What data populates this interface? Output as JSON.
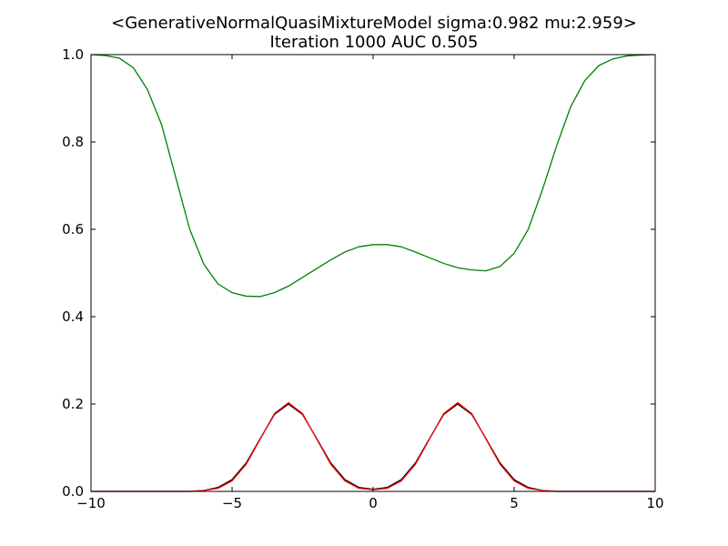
{
  "chart_data": {
    "type": "line",
    "title": "<GenerativeNormalQuasiMixtureModel  sigma:0.982 mu:2.959>",
    "subtitle": "Iteration 1000 AUC 0.505",
    "xlabel": "",
    "ylabel": "",
    "xlim": [
      -10,
      10
    ],
    "ylim": [
      0,
      1
    ],
    "x_ticks": [
      -10,
      -5,
      0,
      5,
      10
    ],
    "x_tick_labels": [
      "−10",
      "−5",
      "0",
      "5",
      "10"
    ],
    "y_ticks": [
      0,
      0.2,
      0.4,
      0.6,
      0.8,
      1.0
    ],
    "y_tick_labels": [
      "0.0",
      "0.2",
      "0.4",
      "0.6",
      "0.8",
      "1.0"
    ],
    "grid": false,
    "legend": "none",
    "series": [
      {
        "color": "#008000",
        "x": [
          -10,
          -9.5,
          -9,
          -8.5,
          -8,
          -7.5,
          -7,
          -6.5,
          -6,
          -5.5,
          -5,
          -4.5,
          -4,
          -3.5,
          -3,
          -2.5,
          -2,
          -1.5,
          -1,
          -0.5,
          0,
          0.5,
          1,
          1.5,
          2,
          2.5,
          3,
          3.5,
          4,
          4.5,
          5,
          5.5,
          6,
          6.5,
          7,
          7.5,
          8,
          8.5,
          9,
          9.5,
          10
        ],
        "y": [
          1.0,
          0.998,
          0.992,
          0.97,
          0.92,
          0.84,
          0.72,
          0.6,
          0.52,
          0.475,
          0.455,
          0.447,
          0.446,
          0.455,
          0.47,
          0.49,
          0.51,
          0.53,
          0.548,
          0.56,
          0.565,
          0.565,
          0.56,
          0.548,
          0.535,
          0.522,
          0.512,
          0.507,
          0.505,
          0.515,
          0.545,
          0.6,
          0.69,
          0.79,
          0.88,
          0.94,
          0.975,
          0.99,
          0.997,
          0.999,
          1.0
        ]
      },
      {
        "color": "#000000",
        "x": [
          -10,
          -9.5,
          -9,
          -8.5,
          -8,
          -7.5,
          -7,
          -6.5,
          -6,
          -5.5,
          -5,
          -4.5,
          -4,
          -3.5,
          -3,
          -2.5,
          -2,
          -1.5,
          -1,
          -0.5,
          0,
          0.5,
          1,
          1.5,
          2,
          2.5,
          3,
          3.5,
          4,
          4.5,
          5,
          5.5,
          6,
          6.5,
          7,
          7.5,
          8,
          8.5,
          9,
          9.5,
          10
        ],
        "y": [
          0.0,
          0.0,
          0.0,
          0.0,
          0.0,
          0.0,
          0.0,
          0.0,
          0.002,
          0.009,
          0.027,
          0.065,
          0.121,
          0.176,
          0.2,
          0.176,
          0.121,
          0.065,
          0.027,
          0.009,
          0.005,
          0.009,
          0.027,
          0.065,
          0.121,
          0.176,
          0.2,
          0.176,
          0.121,
          0.065,
          0.027,
          0.009,
          0.002,
          0.0,
          0.0,
          0.0,
          0.0,
          0.0,
          0.0,
          0.0,
          0.0
        ]
      },
      {
        "color": "#ff0000",
        "x": [
          -10,
          -9.5,
          -9,
          -8.5,
          -8,
          -7.5,
          -7,
          -6.5,
          -6,
          -5.5,
          -5,
          -4.5,
          -4,
          -3.5,
          -3,
          -2.5,
          -2,
          -1.5,
          -1,
          -0.5,
          0,
          0.5,
          1,
          1.5,
          2,
          2.5,
          3,
          3.5,
          4,
          4.5,
          5,
          5.5,
          6,
          6.5,
          7,
          7.5,
          8,
          8.5,
          9,
          9.5,
          10
        ],
        "y": [
          0.0,
          0.0,
          0.0,
          0.0,
          0.0,
          0.0,
          0.0,
          0.0,
          0.002,
          0.007,
          0.024,
          0.062,
          0.12,
          0.178,
          0.203,
          0.178,
          0.12,
          0.062,
          0.024,
          0.007,
          0.004,
          0.007,
          0.024,
          0.062,
          0.12,
          0.178,
          0.203,
          0.178,
          0.12,
          0.062,
          0.024,
          0.007,
          0.002,
          0.0,
          0.0,
          0.0,
          0.0,
          0.0,
          0.0,
          0.0,
          0.0
        ]
      }
    ]
  }
}
